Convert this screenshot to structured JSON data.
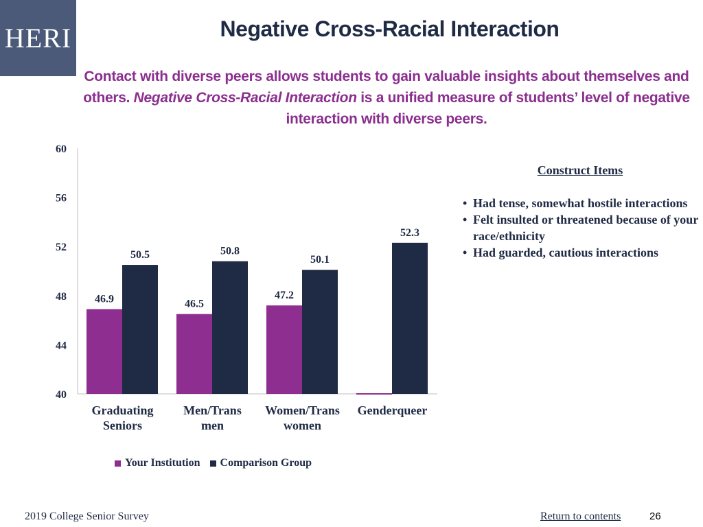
{
  "logo": {
    "text": "HERI"
  },
  "header": {
    "title": "Negative Cross-Racial Interaction",
    "subtitle_part1": "Contact with diverse peers allows students to gain valuable insights about themselves and others. ",
    "subtitle_italic": "Negative Cross-Racial Interaction",
    "subtitle_part2": " is a unified measure of students’ level of negative interaction with diverse peers."
  },
  "chart_data": {
    "type": "bar",
    "categories": [
      [
        "Graduating",
        "Seniors"
      ],
      [
        "Men/Trans",
        "men"
      ],
      [
        "Women/Trans",
        "women"
      ],
      [
        "Genderqueer"
      ]
    ],
    "series": [
      {
        "name": "Your Institution",
        "color": "#8e2e91",
        "values": [
          46.9,
          46.5,
          47.2,
          null
        ]
      },
      {
        "name": "Comparison Group",
        "color": "#1f2a44",
        "values": [
          50.5,
          50.8,
          50.1,
          52.3
        ]
      }
    ],
    "ylim": [
      40,
      60
    ],
    "yticks": [
      40,
      44,
      48,
      52,
      56,
      60
    ],
    "legend": "bottom-left",
    "grid": false
  },
  "construct": {
    "heading": "Construct Items",
    "items": [
      "Had tense, somewhat hostile interactions",
      "Felt insulted or threatened because of your race/ethnicity",
      "Had guarded, cautious interactions"
    ]
  },
  "footer": {
    "survey": "2019 College Senior Survey",
    "link": "Return to contents",
    "page": "26"
  }
}
